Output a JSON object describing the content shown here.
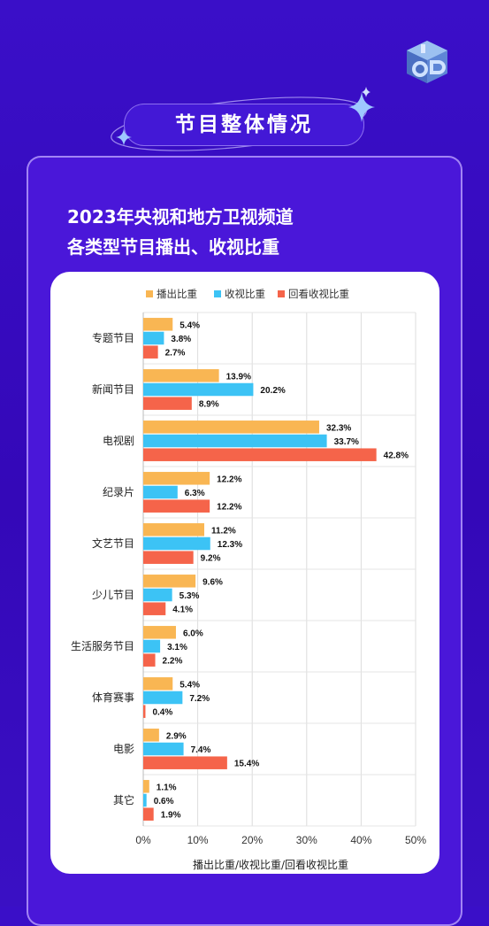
{
  "header": {
    "title": "节目整体情况"
  },
  "panel": {
    "title_line1": "2023年央视和地方卫视频道",
    "title_line2": "各类型节目播出、收视比重"
  },
  "colors": {
    "playback": "#f9b653",
    "viewing": "#3cc3f5",
    "replay": "#f5644a",
    "background": "#3a0fc8"
  },
  "chart_data": {
    "type": "bar",
    "orientation": "horizontal",
    "categories": [
      "专题节目",
      "新闻节目",
      "电视剧",
      "纪录片",
      "文艺节目",
      "少儿节目",
      "生活服务节目",
      "体育赛事",
      "电影",
      "其它"
    ],
    "series": [
      {
        "name": "播出比重",
        "values": [
          5.4,
          13.9,
          32.3,
          12.2,
          11.2,
          9.6,
          6.0,
          5.4,
          2.9,
          1.1
        ]
      },
      {
        "name": "收视比重",
        "values": [
          3.8,
          20.2,
          33.7,
          6.3,
          12.3,
          5.3,
          3.1,
          7.2,
          7.4,
          0.6
        ]
      },
      {
        "name": "回看收视比重",
        "values": [
          2.7,
          8.9,
          42.8,
          12.2,
          9.2,
          4.1,
          2.2,
          0.4,
          15.4,
          1.9
        ]
      }
    ],
    "xticks": [
      "0%",
      "10%",
      "20%",
      "30%",
      "40%",
      "50%"
    ],
    "xlim": [
      0,
      50
    ],
    "xlabel": "播出比重/收视比重/回看收视比重",
    "legend": "top",
    "grid": "vertical"
  }
}
